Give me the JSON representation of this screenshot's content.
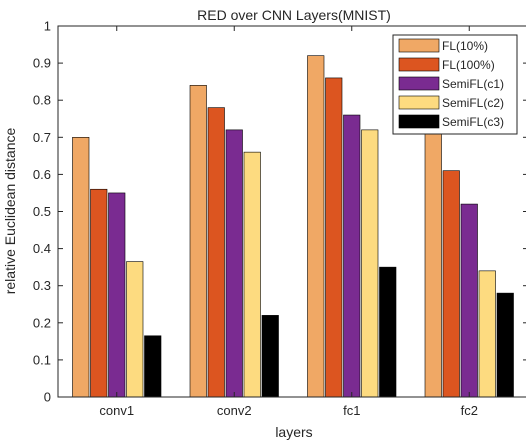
{
  "chart_data": {
    "type": "bar",
    "title": "RED over CNN Layers(MNIST)",
    "xlabel": "layers",
    "ylabel": "relative Euclidean distance",
    "categories": [
      "conv1",
      "conv2",
      "fc1",
      "fc2"
    ],
    "ylim": [
      0,
      1
    ],
    "yticks": [
      "0",
      "0.1",
      "0.2",
      "0.3",
      "0.4",
      "0.5",
      "0.6",
      "0.7",
      "0.8",
      "0.9",
      "1"
    ],
    "grid": false,
    "legend_position": "top-right",
    "series": [
      {
        "name": "FL(10%)",
        "color": "#f0a865",
        "values": [
          0.7,
          0.84,
          0.92,
          0.725
        ]
      },
      {
        "name": "FL(100%)",
        "color": "#dc5520",
        "values": [
          0.56,
          0.78,
          0.86,
          0.61
        ]
      },
      {
        "name": "SemiFL(c1)",
        "color": "#7a2b91",
        "values": [
          0.55,
          0.72,
          0.76,
          0.52
        ]
      },
      {
        "name": "SemiFL(c2)",
        "color": "#fddb80",
        "values": [
          0.365,
          0.66,
          0.72,
          0.34
        ]
      },
      {
        "name": "SemiFL(c3)",
        "color": "#000000",
        "values": [
          0.165,
          0.22,
          0.35,
          0.28
        ]
      }
    ]
  }
}
